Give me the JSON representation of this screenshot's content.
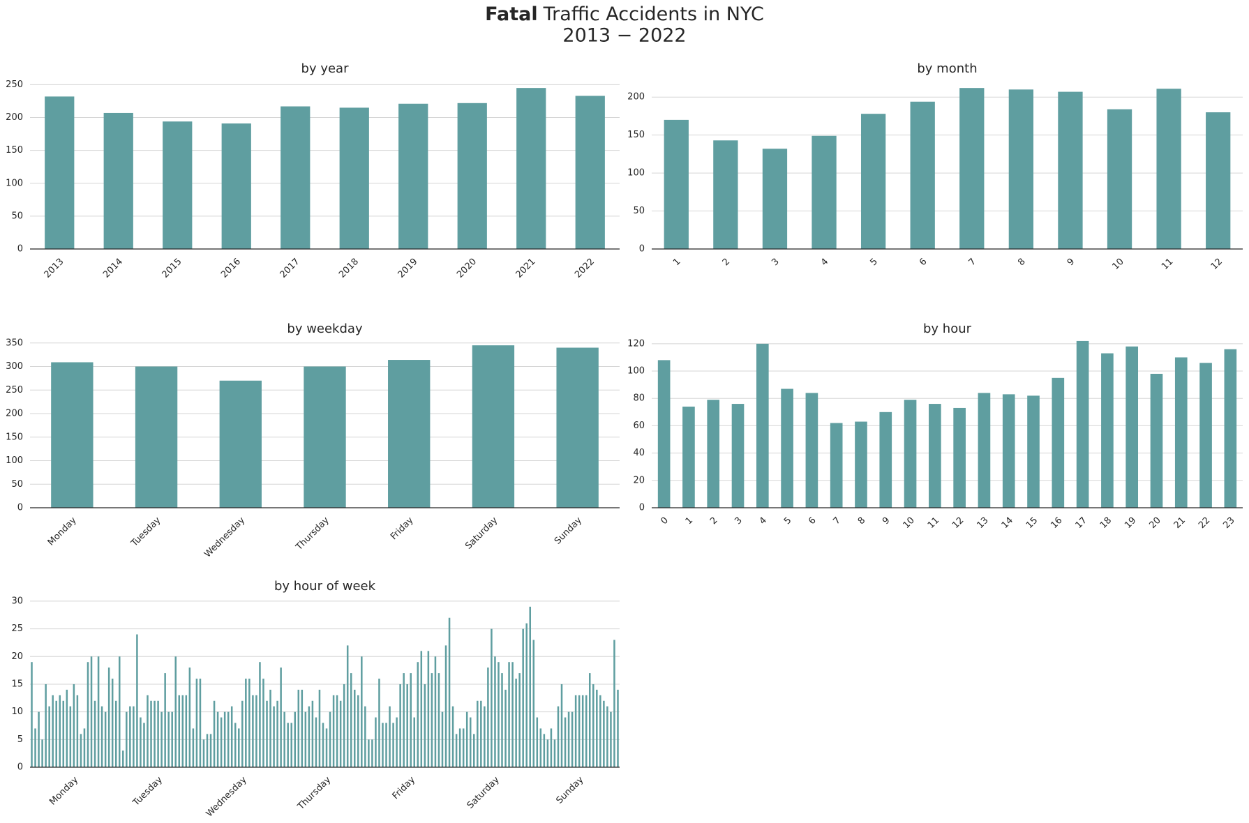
{
  "suptitle": {
    "bold": "Fatal",
    "text": "Traffic Accidents in NYC",
    "line2": "2013 − 2022"
  },
  "chart_data": [
    {
      "type": "bar",
      "title": "by year",
      "color": "#5f9ea0",
      "grid": true,
      "categories": [
        "2013",
        "2014",
        "2015",
        "2016",
        "2017",
        "2018",
        "2019",
        "2020",
        "2021",
        "2022"
      ],
      "values": [
        232,
        207,
        194,
        191,
        217,
        215,
        221,
        222,
        245,
        233
      ],
      "ylim": [
        0,
        260
      ],
      "yticks": [
        0,
        50,
        100,
        150,
        200,
        250
      ]
    },
    {
      "type": "bar",
      "title": "by month",
      "color": "#5f9ea0",
      "grid": true,
      "categories": [
        "1",
        "2",
        "3",
        "4",
        "5",
        "6",
        "7",
        "8",
        "9",
        "10",
        "11",
        "12"
      ],
      "values": [
        170,
        143,
        132,
        149,
        178,
        194,
        212,
        210,
        207,
        184,
        211,
        180
      ],
      "ylim": [
        0,
        225
      ],
      "yticks": [
        0,
        50,
        100,
        150,
        200
      ]
    },
    {
      "type": "bar",
      "title": "by weekday",
      "color": "#5f9ea0",
      "grid": true,
      "categories": [
        "Monday",
        "Tuesday",
        "Wednesday",
        "Thursday",
        "Friday",
        "Saturday",
        "Sunday"
      ],
      "values": [
        309,
        300,
        270,
        300,
        314,
        345,
        340
      ],
      "ylim": [
        0,
        360
      ],
      "yticks": [
        0,
        50,
        100,
        150,
        200,
        250,
        300,
        350
      ]
    },
    {
      "type": "bar",
      "title": "by hour",
      "color": "#5f9ea0",
      "grid": true,
      "categories": [
        "0",
        "1",
        "2",
        "3",
        "4",
        "5",
        "6",
        "7",
        "8",
        "9",
        "10",
        "11",
        "12",
        "13",
        "14",
        "15",
        "16",
        "17",
        "18",
        "19",
        "20",
        "21",
        "22",
        "23"
      ],
      "values": [
        108,
        74,
        79,
        76,
        120,
        87,
        84,
        62,
        63,
        70,
        79,
        76,
        73,
        84,
        83,
        82,
        95,
        122,
        113,
        118,
        98,
        110,
        106,
        116
      ],
      "ylim": [
        0,
        124
      ],
      "yticks": [
        0,
        20,
        40,
        60,
        80,
        100,
        120
      ]
    },
    {
      "type": "bar",
      "title": "by hour of week",
      "color": "#5f9ea0",
      "grid": true,
      "categories": [
        null,
        null,
        null,
        null,
        null,
        null,
        null,
        null,
        null,
        null,
        null,
        null,
        "Monday",
        null,
        null,
        null,
        null,
        null,
        null,
        null,
        null,
        null,
        null,
        null,
        null,
        null,
        null,
        null,
        null,
        null,
        null,
        null,
        null,
        null,
        null,
        null,
        "Tuesday",
        null,
        null,
        null,
        null,
        null,
        null,
        null,
        null,
        null,
        null,
        null,
        null,
        null,
        null,
        null,
        null,
        null,
        null,
        null,
        null,
        null,
        null,
        null,
        "Wednesday",
        null,
        null,
        null,
        null,
        null,
        null,
        null,
        null,
        null,
        null,
        null,
        null,
        null,
        null,
        null,
        null,
        null,
        null,
        null,
        null,
        null,
        null,
        null,
        "Thursday",
        null,
        null,
        null,
        null,
        null,
        null,
        null,
        null,
        null,
        null,
        null,
        null,
        null,
        null,
        null,
        null,
        null,
        null,
        null,
        null,
        null,
        null,
        null,
        "Friday",
        null,
        null,
        null,
        null,
        null,
        null,
        null,
        null,
        null,
        null,
        null,
        null,
        null,
        null,
        null,
        null,
        null,
        null,
        null,
        null,
        null,
        null,
        null,
        "Saturday",
        null,
        null,
        null,
        null,
        null,
        null,
        null,
        null,
        null,
        null,
        null,
        null,
        null,
        null,
        null,
        null,
        null,
        null,
        null,
        null,
        null,
        null,
        null,
        "Sunday",
        null,
        null,
        null,
        null,
        null,
        null,
        null,
        null,
        null,
        null,
        null
      ],
      "values": [
        19,
        7,
        10,
        5,
        15,
        11,
        13,
        12,
        13,
        12,
        14,
        11,
        15,
        13,
        6,
        7,
        19,
        20,
        12,
        20,
        11,
        10,
        18,
        16,
        12,
        20,
        3,
        10,
        11,
        11,
        24,
        9,
        8,
        13,
        12,
        12,
        12,
        10,
        17,
        10,
        10,
        20,
        13,
        13,
        13,
        18,
        7,
        16,
        16,
        5,
        6,
        6,
        12,
        10,
        9,
        10,
        10,
        11,
        8,
        7,
        12,
        16,
        16,
        13,
        13,
        19,
        16,
        12,
        14,
        11,
        12,
        18,
        10,
        8,
        8,
        10,
        14,
        14,
        10,
        11,
        12,
        9,
        14,
        8,
        7,
        10,
        13,
        13,
        12,
        15,
        22,
        17,
        14,
        13,
        20,
        11,
        5,
        5,
        9,
        16,
        8,
        8,
        11,
        8,
        9,
        15,
        17,
        15,
        17,
        9,
        19,
        21,
        15,
        21,
        17,
        20,
        17,
        10,
        22,
        27,
        11,
        6,
        7,
        7,
        10,
        9,
        6,
        12,
        12,
        11,
        18,
        25,
        20,
        19,
        17,
        14,
        19,
        19,
        16,
        17,
        25,
        26,
        29,
        23,
        9,
        7,
        6,
        5,
        7,
        5,
        11,
        15,
        9,
        10,
        10,
        13,
        13,
        13,
        13,
        17,
        15,
        14,
        13,
        12,
        11,
        10,
        23,
        14
      ],
      "ylim": [
        0,
        31
      ],
      "yticks": [
        0,
        5,
        10,
        15,
        20,
        25,
        30
      ]
    }
  ]
}
